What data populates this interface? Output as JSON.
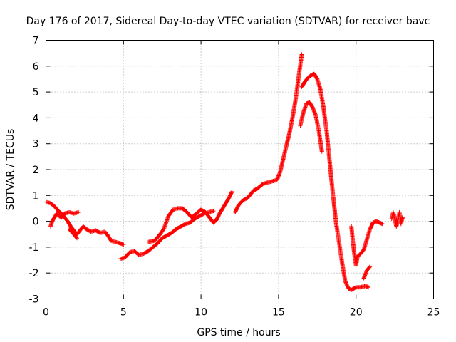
{
  "chart_data": {
    "type": "scatter",
    "title": "Day 176 of 2017, Sidereal Day-to-day VTEC variation (SDTVAR) for receiver bavc",
    "xlabel": "GPS time / hours",
    "ylabel": "SDTVAR / TECUs",
    "xlim": [
      0,
      25
    ],
    "ylim": [
      -3,
      7
    ],
    "x_ticks": [
      0,
      5,
      10,
      15,
      20,
      25
    ],
    "y_ticks": [
      -3,
      -2,
      -1,
      0,
      1,
      2,
      3,
      4,
      5,
      6,
      7
    ],
    "grid": true,
    "marker": "plus",
    "series_color": "#ff0000",
    "segments": [
      [
        [
          0.0,
          0.75
        ],
        [
          0.3,
          0.7
        ],
        [
          0.6,
          0.55
        ],
        [
          0.8,
          0.4
        ],
        [
          1.0,
          0.3
        ],
        [
          1.2,
          0.15
        ],
        [
          1.4,
          0.0
        ],
        [
          1.6,
          -0.2
        ],
        [
          1.8,
          -0.35
        ],
        [
          2.0,
          -0.5
        ],
        [
          2.2,
          -0.35
        ],
        [
          2.4,
          -0.2
        ],
        [
          2.6,
          -0.3
        ],
        [
          2.9,
          -0.4
        ],
        [
          3.2,
          -0.35
        ],
        [
          3.5,
          -0.45
        ],
        [
          3.8,
          -0.4
        ],
        [
          4.0,
          -0.55
        ],
        [
          4.2,
          -0.75
        ],
        [
          4.5,
          -0.8
        ],
        [
          4.8,
          -0.85
        ],
        [
          5.0,
          -0.9
        ]
      ],
      [
        [
          0.3,
          -0.2
        ],
        [
          0.4,
          0.0
        ],
        [
          0.55,
          0.15
        ],
        [
          0.7,
          0.3
        ],
        [
          0.85,
          0.2
        ],
        [
          1.0,
          0.15
        ],
        [
          1.2,
          0.3
        ],
        [
          1.5,
          0.35
        ],
        [
          1.8,
          0.3
        ],
        [
          2.1,
          0.35
        ]
      ],
      [
        [
          1.5,
          -0.3
        ],
        [
          1.8,
          -0.5
        ],
        [
          2.0,
          -0.65
        ]
      ],
      [
        [
          4.8,
          -1.45
        ],
        [
          5.1,
          -1.4
        ],
        [
          5.4,
          -1.2
        ],
        [
          5.7,
          -1.15
        ],
        [
          6.0,
          -1.3
        ],
        [
          6.3,
          -1.25
        ],
        [
          6.6,
          -1.15
        ],
        [
          6.9,
          -1.0
        ],
        [
          7.2,
          -0.85
        ],
        [
          7.5,
          -0.65
        ],
        [
          7.8,
          -0.55
        ],
        [
          8.1,
          -0.45
        ],
        [
          8.4,
          -0.3
        ],
        [
          8.7,
          -0.2
        ],
        [
          9.0,
          -0.1
        ],
        [
          9.3,
          -0.05
        ],
        [
          9.6,
          0.1
        ],
        [
          9.9,
          0.2
        ],
        [
          10.2,
          0.3
        ],
        [
          10.5,
          0.35
        ],
        [
          10.8,
          0.4
        ]
      ],
      [
        [
          6.6,
          -0.8
        ],
        [
          7.0,
          -0.75
        ],
        [
          7.3,
          -0.55
        ],
        [
          7.6,
          -0.3
        ],
        [
          7.9,
          0.2
        ],
        [
          8.2,
          0.45
        ],
        [
          8.5,
          0.5
        ],
        [
          8.8,
          0.5
        ],
        [
          9.1,
          0.35
        ],
        [
          9.4,
          0.15
        ],
        [
          9.7,
          0.3
        ],
        [
          10.0,
          0.45
        ],
        [
          10.3,
          0.35
        ],
        [
          10.6,
          0.1
        ],
        [
          10.8,
          -0.05
        ],
        [
          11.0,
          0.05
        ],
        [
          11.2,
          0.3
        ],
        [
          11.5,
          0.6
        ],
        [
          11.8,
          0.9
        ],
        [
          12.0,
          1.15
        ]
      ],
      [
        [
          12.2,
          0.35
        ],
        [
          12.4,
          0.6
        ],
        [
          12.6,
          0.75
        ],
        [
          12.8,
          0.85
        ],
        [
          13.0,
          0.9
        ],
        [
          13.2,
          1.05
        ],
        [
          13.4,
          1.2
        ],
        [
          13.6,
          1.25
        ],
        [
          13.8,
          1.35
        ],
        [
          14.0,
          1.45
        ],
        [
          14.3,
          1.5
        ],
        [
          14.6,
          1.55
        ],
        [
          14.9,
          1.6
        ],
        [
          15.1,
          1.9
        ],
        [
          15.3,
          2.4
        ],
        [
          15.5,
          2.9
        ],
        [
          15.7,
          3.4
        ],
        [
          15.9,
          4.0
        ],
        [
          16.1,
          4.7
        ],
        [
          16.3,
          5.6
        ],
        [
          16.5,
          6.45
        ]
      ],
      [
        [
          16.4,
          3.7
        ],
        [
          16.6,
          4.2
        ],
        [
          16.8,
          4.55
        ],
        [
          17.0,
          4.6
        ],
        [
          17.2,
          4.4
        ],
        [
          17.4,
          4.1
        ],
        [
          17.6,
          3.5
        ],
        [
          17.8,
          2.7
        ]
      ],
      [
        [
          16.5,
          5.2
        ],
        [
          16.7,
          5.4
        ],
        [
          16.9,
          5.55
        ],
        [
          17.1,
          5.65
        ],
        [
          17.3,
          5.7
        ],
        [
          17.5,
          5.5
        ],
        [
          17.7,
          5.1
        ],
        [
          17.9,
          4.4
        ],
        [
          18.1,
          3.5
        ],
        [
          18.3,
          2.3
        ],
        [
          18.5,
          1.1
        ],
        [
          18.7,
          0.0
        ],
        [
          18.9,
          -0.8
        ],
        [
          19.1,
          -1.6
        ],
        [
          19.3,
          -2.3
        ],
        [
          19.5,
          -2.6
        ],
        [
          19.7,
          -2.65
        ],
        [
          20.0,
          -2.55
        ],
        [
          20.3,
          -2.55
        ],
        [
          20.6,
          -2.5
        ],
        [
          20.8,
          -2.55
        ]
      ],
      [
        [
          19.7,
          -0.2
        ],
        [
          19.8,
          -0.8
        ],
        [
          19.9,
          -1.3
        ],
        [
          20.0,
          -1.7
        ],
        [
          20.1,
          -1.35
        ],
        [
          20.3,
          -1.25
        ],
        [
          20.5,
          -1.1
        ],
        [
          20.7,
          -0.7
        ],
        [
          20.9,
          -0.3
        ],
        [
          21.1,
          -0.05
        ],
        [
          21.3,
          0.0
        ],
        [
          21.5,
          -0.05
        ],
        [
          21.7,
          -0.1
        ]
      ],
      [
        [
          20.5,
          -2.2
        ],
        [
          20.7,
          -1.9
        ],
        [
          20.9,
          -1.75
        ]
      ],
      [
        [
          22.3,
          0.1
        ],
        [
          22.4,
          0.35
        ],
        [
          22.5,
          0.1
        ],
        [
          22.6,
          -0.2
        ],
        [
          22.7,
          0.05
        ],
        [
          22.8,
          0.35
        ],
        [
          22.9,
          -0.1
        ],
        [
          23.0,
          0.15
        ]
      ]
    ]
  }
}
